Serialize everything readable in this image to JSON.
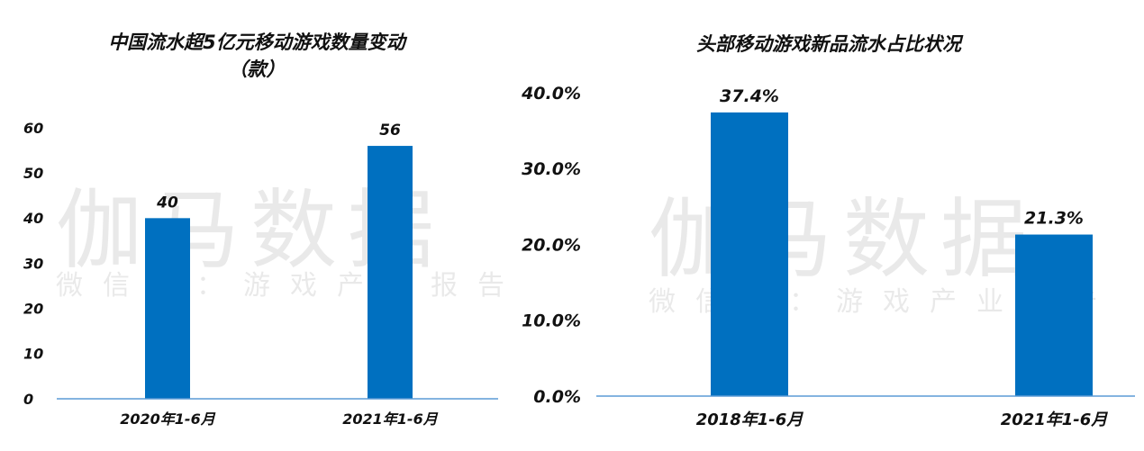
{
  "watermark": {
    "main": "伽马数据",
    "sub": "微信号：游戏产业报告"
  },
  "chart_data": [
    {
      "type": "bar",
      "title_lines": [
        "中国流水超5亿元移动游戏数量变动",
        "（款）"
      ],
      "categories": [
        "2020年1-6月",
        "2021年1-6月"
      ],
      "values": [
        40,
        56
      ],
      "data_labels": [
        "40",
        "56"
      ],
      "y_ticks": [
        "0",
        "10",
        "20",
        "30",
        "40",
        "50",
        "60"
      ],
      "ylim": [
        0,
        60
      ],
      "grid": false,
      "bar_color": "#0070C0",
      "axis_color": "#5B9BD5"
    },
    {
      "type": "bar",
      "title_lines": [
        "头部移动游戏新品流水占比状况"
      ],
      "categories": [
        "2018年1-6月",
        "2021年1-6月"
      ],
      "values": [
        37.4,
        21.3
      ],
      "data_labels": [
        "37.4%",
        "21.3%"
      ],
      "y_ticks": [
        "0.0%",
        "10.0%",
        "20.0%",
        "30.0%",
        "40.0%"
      ],
      "ylim": [
        0,
        40
      ],
      "grid": false,
      "bar_color": "#0070C0",
      "axis_color": "#5B9BD5"
    }
  ]
}
